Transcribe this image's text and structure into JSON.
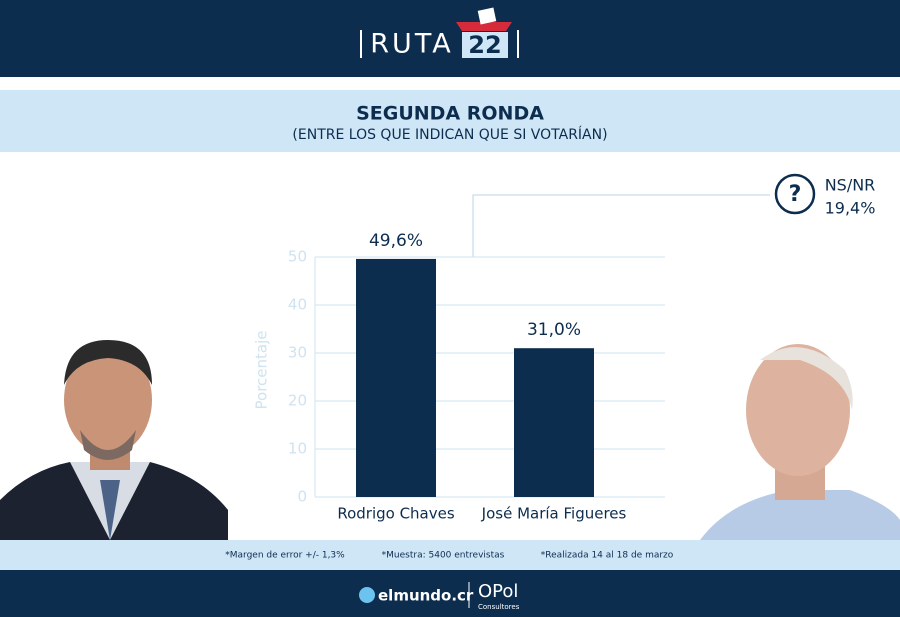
{
  "header": {
    "brand": "RUTA",
    "number": "22"
  },
  "chart_data": {
    "type": "bar",
    "title": "SEGUNDA RONDA",
    "subtitle": "(ENTRE LOS QUE INDICAN QUE SI VOTARÍAN)",
    "y_label": "Porcentaje",
    "categories": [
      "Rodrigo Chaves",
      "José María Figueres"
    ],
    "values": [
      49.6,
      31.0
    ],
    "value_labels": [
      "49,6%",
      "31,0%"
    ],
    "color": "#0d2d4f",
    "ylim": [
      0,
      50
    ],
    "yticks": [
      0,
      10,
      20,
      30,
      40,
      50
    ],
    "grid": true,
    "annotation": {
      "icon": "?",
      "label": "NS/NR",
      "value": 19.4,
      "value_label": "19,4%"
    }
  },
  "notes": [
    "*Margen de error +/- 1,3%",
    "*Muestra: 5400 entrevistas",
    "*Realizada 14 al 18 de marzo"
  ],
  "footer": {
    "site": "elmundo.cr",
    "firm": "OPol",
    "firm_sub": "Consultores"
  }
}
